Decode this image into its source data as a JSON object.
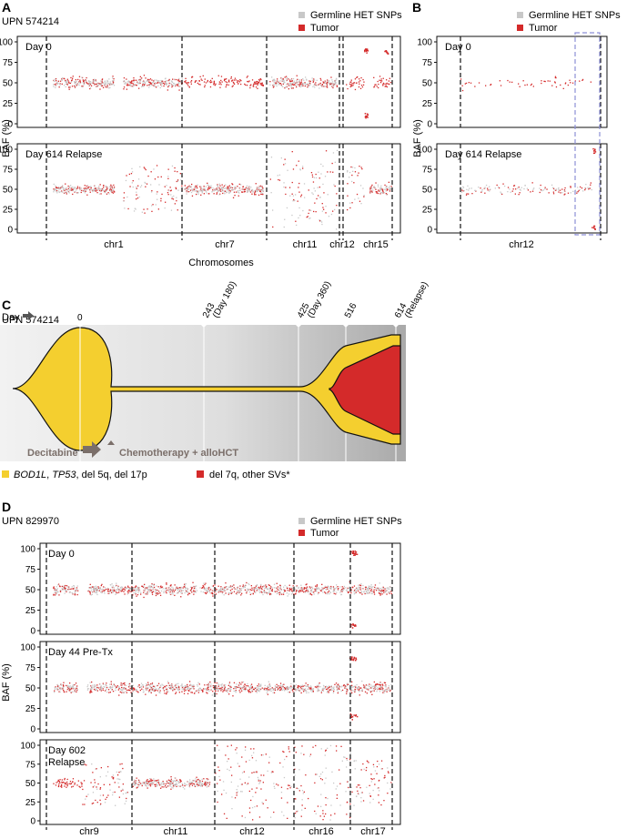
{
  "panels": {
    "A": {
      "letter": "A",
      "upn": "UPN 574214"
    },
    "B": {
      "letter": "B"
    },
    "C": {
      "letter": "C",
      "upn": "UPN 574214"
    },
    "D": {
      "letter": "D",
      "upn": "UPN 829970"
    }
  },
  "legend": {
    "germline": "Germline HET SNPs",
    "tumor": "Tumor"
  },
  "colors": {
    "germline": "#c8c8c8",
    "tumor": "#d42a2a",
    "yellow": "#f4cf2f",
    "red": "#d42a2a",
    "arrow": "#7b6f6a"
  },
  "axes": {
    "ylabel": "BAF (%)",
    "yticks": [
      "0",
      "25",
      "50",
      "75",
      "100"
    ]
  },
  "chart_data": [
    {
      "id": "A",
      "type": "scatter",
      "upn": "UPN 574214",
      "xlabel": "Chromosomes",
      "ylabel": "BAF (%)",
      "ylim": [
        0,
        100
      ],
      "chromosomes": [
        "chr1",
        "chr7",
        "chr11",
        "chr12",
        "chr15"
      ],
      "subplots": [
        {
          "label": "Day 0",
          "tumor_baf_center": 50,
          "notes": "chr15 has tumor clusters near 0 and 90"
        },
        {
          "label": "Day 614 Relapse",
          "tumor_baf_center": 50,
          "notes": "chr7 spread 25-75; chr11 spread 0-100"
        }
      ],
      "series": [
        {
          "name": "Germline HET SNPs"
        },
        {
          "name": "Tumor"
        }
      ]
    },
    {
      "id": "B",
      "type": "scatter",
      "ylabel": "BAF (%)",
      "ylim": [
        0,
        100
      ],
      "chromosomes": [
        "chr12"
      ],
      "subplots": [
        {
          "label": "Day 0"
        },
        {
          "label": "Day 614 Relapse"
        }
      ],
      "series": [
        {
          "name": "Germline HET SNPs"
        },
        {
          "name": "Tumor"
        }
      ]
    },
    {
      "id": "C",
      "type": "fishplot",
      "upn": "UPN 574214",
      "day_label": "Day",
      "timepoints": [
        {
          "day": 0,
          "label": "0",
          "sub": ""
        },
        {
          "day": 243,
          "label": "243",
          "sub": "(Day 180)"
        },
        {
          "day": 425,
          "label": "425",
          "sub": "(Day 360)"
        },
        {
          "day": 516,
          "label": "516",
          "sub": ""
        },
        {
          "day": 614,
          "label": "614",
          "sub": "(Relapse)"
        }
      ],
      "treatments": [
        "Decitabine",
        "Chemotherapy + alloHCT"
      ],
      "clones": [
        {
          "name_parts": [
            {
              "t": "BOD1L",
              "i": true
            },
            {
              "t": ", ",
              "i": false
            },
            {
              "t": "TP53",
              "i": true
            },
            {
              "t": ", del 5q, del 17p",
              "i": false
            }
          ],
          "color": "#f4cf2f"
        },
        {
          "name_parts": [
            {
              "t": "del 7q, other SVs*",
              "i": false
            }
          ],
          "color": "#d42a2a"
        }
      ]
    },
    {
      "id": "D",
      "type": "scatter",
      "upn": "UPN 829970",
      "ylabel": "BAF (%)",
      "ylim": [
        0,
        100
      ],
      "chromosomes": [
        "chr9",
        "chr11",
        "chr12",
        "chr16",
        "chr17"
      ],
      "subplots": [
        {
          "label": "Day 0"
        },
        {
          "label": "Day 44 Pre-Tx"
        },
        {
          "label": "Day 602\nRelapse"
        }
      ],
      "series": [
        {
          "name": "Germline HET SNPs"
        },
        {
          "name": "Tumor"
        }
      ]
    }
  ]
}
